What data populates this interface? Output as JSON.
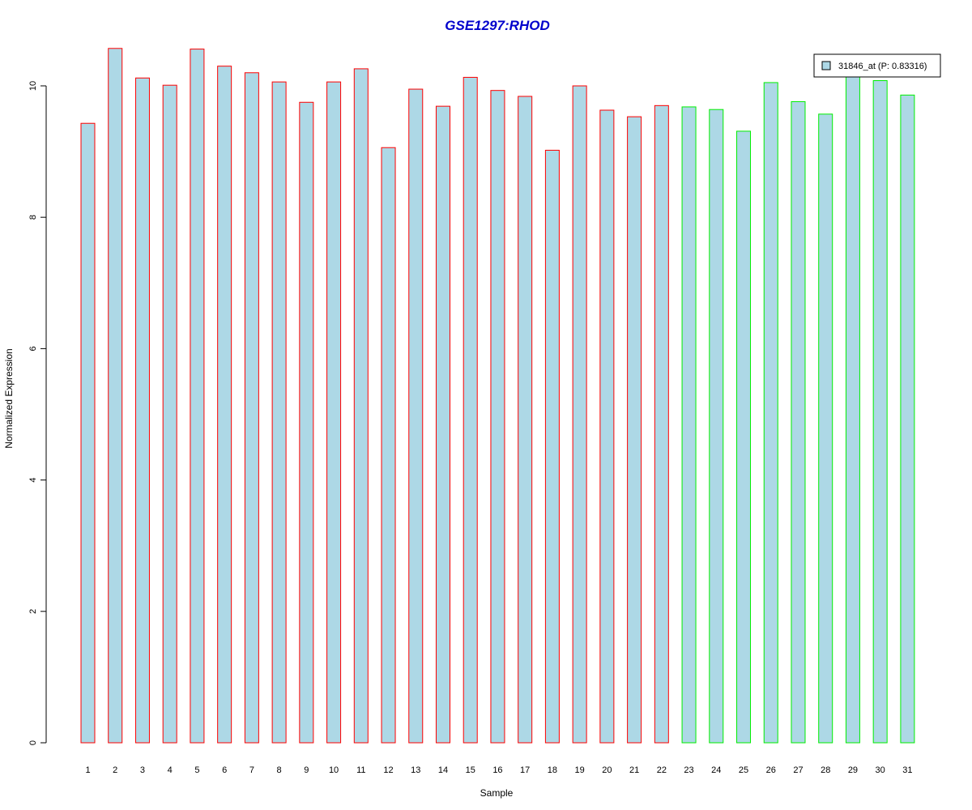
{
  "chart_data": {
    "type": "bar",
    "title": "GSE1297:RHOD",
    "xlabel": "Sample",
    "ylabel": "Normalized Expression",
    "ylim": [
      0,
      10.6
    ],
    "yticks": [
      0,
      2,
      4,
      6,
      8,
      10
    ],
    "categories": [
      "1",
      "2",
      "3",
      "4",
      "5",
      "6",
      "7",
      "8",
      "9",
      "10",
      "11",
      "12",
      "13",
      "14",
      "15",
      "16",
      "17",
      "18",
      "19",
      "20",
      "21",
      "22",
      "23",
      "24",
      "25",
      "26",
      "27",
      "28",
      "29",
      "30",
      "31"
    ],
    "values": [
      9.43,
      10.57,
      10.12,
      10.01,
      10.56,
      10.3,
      10.2,
      10.06,
      9.75,
      10.06,
      10.26,
      9.06,
      9.95,
      9.69,
      10.13,
      9.93,
      9.84,
      9.02,
      10.0,
      9.63,
      9.53,
      9.7,
      9.68,
      9.64,
      9.31,
      10.05,
      9.76,
      9.57,
      10.2,
      10.08,
      9.86
    ],
    "fill_color": "#add8e6",
    "group_colors": {
      "group1": "#ff0000",
      "group2": "#00ee00"
    },
    "group_of_bar": [
      "group1",
      "group1",
      "group1",
      "group1",
      "group1",
      "group1",
      "group1",
      "group1",
      "group1",
      "group1",
      "group1",
      "group1",
      "group1",
      "group1",
      "group1",
      "group1",
      "group1",
      "group1",
      "group1",
      "group1",
      "group1",
      "group1",
      "group2",
      "group2",
      "group2",
      "group2",
      "group2",
      "group2",
      "group2",
      "group2",
      "group2"
    ],
    "legend": {
      "label": "31846_at (P: 0.83316)",
      "placement": "top-right"
    }
  }
}
